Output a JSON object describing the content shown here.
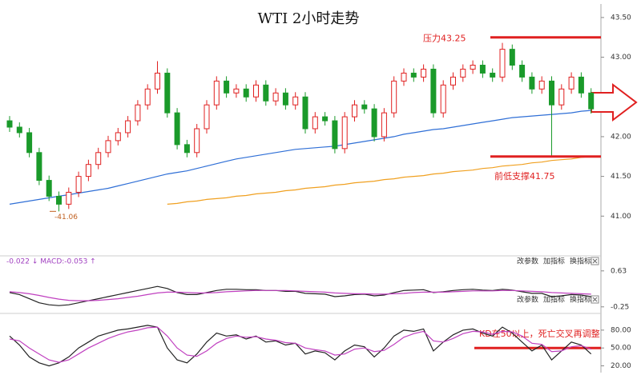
{
  "chart_data": [
    {
      "type": "candlestick",
      "title": "WTI 2小时走势",
      "open": [
        42.2,
        42.12,
        42.05,
        41.8,
        41.45,
        41.25,
        41.15,
        41.3,
        41.5,
        41.65,
        41.8,
        41.95,
        42.05,
        42.2,
        42.4,
        42.6,
        42.8,
        42.3,
        41.9,
        41.8,
        42.1,
        42.4,
        42.7,
        42.55,
        42.6,
        42.5,
        42.65,
        42.45,
        42.55,
        42.4,
        42.5,
        42.1,
        42.25,
        42.2,
        41.85,
        42.25,
        42.4,
        42.35,
        42.0,
        42.3,
        42.7,
        42.8,
        42.75,
        42.85,
        42.3,
        42.65,
        42.75,
        42.85,
        42.9,
        42.8,
        42.75,
        43.1,
        42.9,
        42.75,
        42.6,
        42.7,
        42.4,
        42.6,
        42.75,
        42.55
      ],
      "high": [
        42.26,
        42.18,
        42.11,
        41.86,
        41.51,
        41.31,
        41.36,
        41.56,
        41.71,
        41.86,
        42.01,
        42.11,
        42.26,
        42.46,
        42.66,
        42.95,
        42.86,
        42.36,
        41.96,
        42.16,
        42.46,
        42.76,
        42.76,
        42.66,
        42.66,
        42.71,
        42.71,
        42.61,
        42.61,
        42.56,
        42.56,
        42.31,
        42.31,
        42.26,
        42.31,
        42.46,
        42.46,
        42.41,
        42.36,
        42.76,
        42.86,
        42.86,
        42.91,
        42.91,
        42.71,
        42.81,
        42.91,
        42.96,
        42.96,
        42.86,
        43.18,
        43.16,
        42.96,
        42.81,
        42.76,
        42.76,
        42.66,
        42.81,
        42.81,
        42.61
      ],
      "low": [
        42.06,
        41.99,
        41.74,
        41.39,
        41.19,
        41.06,
        41.09,
        41.24,
        41.44,
        41.59,
        41.74,
        41.89,
        41.99,
        42.14,
        42.34,
        42.54,
        42.24,
        41.84,
        41.74,
        41.74,
        42.04,
        42.34,
        42.49,
        42.49,
        42.44,
        42.44,
        42.39,
        42.39,
        42.34,
        42.34,
        42.04,
        42.04,
        42.14,
        41.79,
        41.79,
        42.19,
        42.29,
        41.94,
        41.94,
        42.24,
        42.64,
        42.69,
        42.69,
        42.24,
        42.24,
        42.59,
        42.69,
        42.79,
        42.74,
        42.69,
        42.69,
        42.84,
        42.69,
        42.54,
        42.54,
        41.75,
        42.34,
        42.54,
        42.49,
        42.29
      ],
      "close": [
        42.12,
        42.05,
        41.8,
        41.45,
        41.25,
        41.15,
        41.3,
        41.5,
        41.65,
        41.8,
        41.95,
        42.05,
        42.2,
        42.4,
        42.6,
        42.8,
        42.3,
        41.9,
        41.8,
        42.1,
        42.4,
        42.7,
        42.55,
        42.6,
        42.5,
        42.65,
        42.45,
        42.55,
        42.4,
        42.5,
        42.1,
        42.25,
        42.2,
        41.85,
        42.25,
        42.4,
        42.35,
        42.0,
        42.3,
        42.7,
        42.8,
        42.75,
        42.85,
        42.3,
        42.65,
        42.75,
        42.85,
        42.9,
        42.8,
        42.75,
        43.1,
        42.9,
        42.75,
        42.6,
        42.7,
        42.4,
        42.6,
        42.75,
        42.55,
        42.35
      ],
      "up_color": "#e02020",
      "down_color": "#1a9a2a",
      "series": [
        {
          "color": "#2f6fd6",
          "values": [
            41.15,
            41.17,
            41.19,
            41.21,
            41.23,
            41.25,
            41.27,
            41.29,
            41.31,
            41.33,
            41.35,
            41.38,
            41.41,
            41.44,
            41.47,
            41.5,
            41.53,
            41.55,
            41.57,
            41.6,
            41.63,
            41.66,
            41.69,
            41.72,
            41.74,
            41.76,
            41.78,
            41.8,
            41.82,
            41.84,
            41.85,
            41.86,
            41.87,
            41.88,
            41.9,
            41.92,
            41.94,
            41.96,
            41.98,
            42.0,
            42.03,
            42.05,
            42.07,
            42.09,
            42.1,
            42.12,
            42.14,
            42.16,
            42.18,
            42.2,
            42.22,
            42.24,
            42.25,
            42.26,
            42.27,
            42.28,
            42.29,
            42.3,
            42.32,
            42.33
          ]
        },
        {
          "color": "#f0a020",
          "values": [
            null,
            null,
            null,
            null,
            null,
            null,
            null,
            null,
            null,
            null,
            null,
            null,
            null,
            null,
            null,
            null,
            41.15,
            41.16,
            41.18,
            41.19,
            41.21,
            41.22,
            41.23,
            41.25,
            41.26,
            41.28,
            41.29,
            41.3,
            41.32,
            41.33,
            41.35,
            41.36,
            41.37,
            41.39,
            41.4,
            41.42,
            41.43,
            41.44,
            41.46,
            41.47,
            41.49,
            41.5,
            41.51,
            41.53,
            41.54,
            41.56,
            41.57,
            41.58,
            41.6,
            41.61,
            41.63,
            41.64,
            41.65,
            41.67,
            41.68,
            41.7,
            41.71,
            41.72,
            41.74,
            41.75
          ]
        }
      ],
      "ylim": [
        40.55,
        43.67
      ],
      "yticks": [
        {
          "value": 41,
          "label": "41.00"
        },
        {
          "value": 41.5,
          "label": "41.50"
        },
        {
          "value": 42,
          "label": "42.00"
        },
        {
          "value": 43,
          "label": "43.00"
        },
        {
          "value": 43.5,
          "label": "43.50"
        }
      ],
      "annotations": [
        {
          "text": "压力43.25",
          "value": 43.25
        },
        {
          "text": "前低支撑41.75",
          "value": 41.75
        }
      ],
      "low_label": {
        "text": "-41.06",
        "value": 41.06
      }
    },
    {
      "type": "line",
      "label": "-0.022 ↓ MACD:-0.053 ↑",
      "series": [
        {
          "color": "#222222",
          "values": [
            0.1,
            0.05,
            -0.05,
            -0.15,
            -0.2,
            -0.22,
            -0.2,
            -0.15,
            -0.1,
            -0.05,
            0,
            0.05,
            0.1,
            0.15,
            0.2,
            0.25,
            0.2,
            0.1,
            0.05,
            0.05,
            0.1,
            0.15,
            0.18,
            0.18,
            0.17,
            0.17,
            0.15,
            0.15,
            0.13,
            0.13,
            0.08,
            0.07,
            0.06,
            0,
            0.02,
            0.05,
            0.06,
            0.02,
            0.04,
            0.1,
            0.15,
            0.16,
            0.17,
            0.1,
            0.12,
            0.15,
            0.17,
            0.18,
            0.16,
            0.15,
            0.18,
            0.16,
            0.12,
            0.08,
            0.08,
            0,
            0.02,
            0.05,
            0.04,
            0
          ]
        },
        {
          "color": "#c040c0",
          "values": [
            0.12,
            0.1,
            0.07,
            0.03,
            -0.02,
            -0.06,
            -0.09,
            -0.1,
            -0.1,
            -0.09,
            -0.07,
            -0.05,
            -0.02,
            0.01,
            0.05,
            0.09,
            0.11,
            0.11,
            0.1,
            0.09,
            0.09,
            0.1,
            0.12,
            0.13,
            0.14,
            0.15,
            0.15,
            0.15,
            0.15,
            0.14,
            0.13,
            0.12,
            0.11,
            0.09,
            0.08,
            0.07,
            0.07,
            0.06,
            0.06,
            0.07,
            0.08,
            0.1,
            0.11,
            0.11,
            0.11,
            0.12,
            0.13,
            0.14,
            0.14,
            0.14,
            0.15,
            0.15,
            0.14,
            0.13,
            0.12,
            0.1,
            0.09,
            0.08,
            0.07,
            0.06
          ]
        }
      ],
      "ylim": [
        -0.45,
        0.9
      ],
      "yticks": [
        0.63,
        -0.25
      ]
    },
    {
      "type": "line",
      "series": [
        {
          "color": "#222222",
          "values": [
            70,
            55,
            35,
            25,
            20,
            25,
            35,
            50,
            60,
            70,
            75,
            80,
            82,
            85,
            88,
            85,
            50,
            30,
            25,
            40,
            60,
            75,
            70,
            72,
            65,
            70,
            60,
            62,
            55,
            58,
            40,
            45,
            42,
            30,
            45,
            55,
            52,
            35,
            50,
            70,
            80,
            78,
            82,
            45,
            60,
            72,
            80,
            82,
            75,
            70,
            85,
            75,
            60,
            45,
            55,
            30,
            45,
            60,
            55,
            40
          ]
        },
        {
          "color": "#c040c0",
          "values": [
            65,
            62,
            50,
            40,
            30,
            26,
            30,
            40,
            50,
            58,
            66,
            72,
            77,
            80,
            84,
            85,
            70,
            50,
            38,
            36,
            45,
            58,
            66,
            70,
            68,
            69,
            65,
            63,
            59,
            58,
            50,
            47,
            45,
            38,
            40,
            48,
            50,
            44,
            46,
            56,
            68,
            74,
            78,
            62,
            60,
            66,
            74,
            78,
            77,
            73,
            78,
            77,
            70,
            58,
            56,
            44,
            45,
            52,
            54,
            48
          ]
        }
      ],
      "ylim": [
        10,
        104
      ],
      "yticks": [
        {
          "value": 80,
          "label": "80.00"
        },
        {
          "value": 50,
          "label": "50.00"
        },
        {
          "value": 20,
          "label": "20.00"
        }
      ],
      "annotations": [
        {
          "text": "KD在50以上，死亡交叉再调整",
          "value": 50
        }
      ]
    }
  ],
  "toolbar": [
    "改参数",
    "加指标",
    "换指标"
  ]
}
